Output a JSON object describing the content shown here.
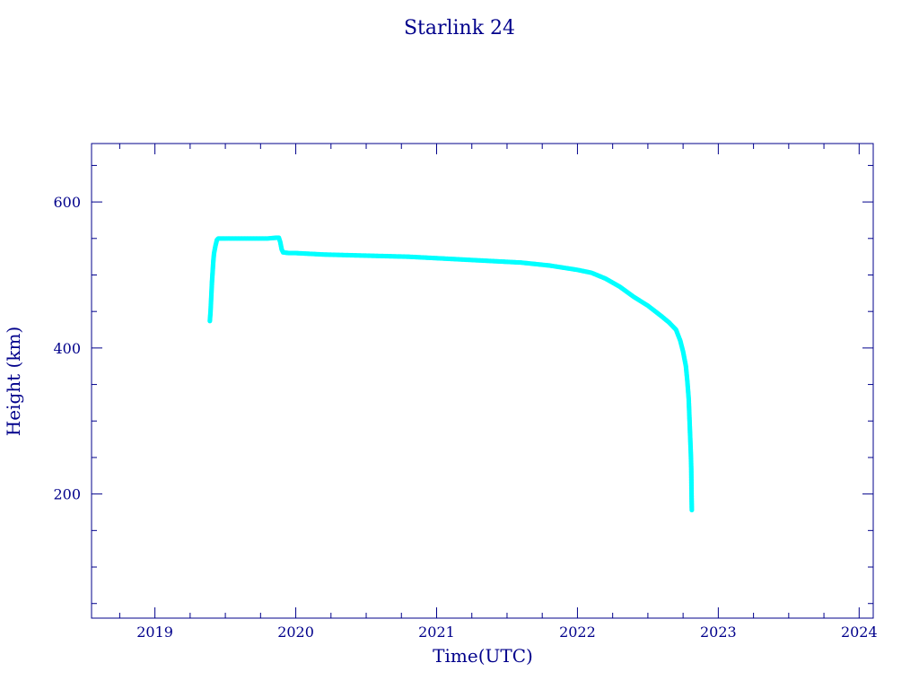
{
  "chart_data": {
    "type": "scatter",
    "title": "Starlink 24",
    "xlabel": "Time(UTC)",
    "ylabel": "Height (km)",
    "xlim": [
      2018.55,
      2024.1
    ],
    "ylim": [
      30,
      680
    ],
    "x_ticks": [
      2019,
      2020,
      2021,
      2022,
      2023,
      2024
    ],
    "y_ticks": [
      200,
      400,
      600
    ],
    "grid": false,
    "colors": {
      "axis": "#00008b",
      "points": "#00ffff",
      "line": "#cc0000"
    },
    "series": [
      {
        "points": [
          [
            2019.39,
            437
          ],
          [
            2019.395,
            450
          ],
          [
            2019.4,
            470
          ],
          [
            2019.405,
            490
          ],
          [
            2019.41,
            505
          ],
          [
            2019.415,
            520
          ],
          [
            2019.42,
            530
          ],
          [
            2019.43,
            540
          ],
          [
            2019.44,
            548
          ],
          [
            2019.45,
            550
          ],
          [
            2019.5,
            550
          ],
          [
            2019.6,
            550
          ],
          [
            2019.7,
            550
          ],
          [
            2019.8,
            550
          ],
          [
            2019.86,
            551
          ],
          [
            2019.88,
            551
          ],
          [
            2019.89,
            545
          ],
          [
            2019.9,
            535
          ],
          [
            2019.91,
            531
          ],
          [
            2019.95,
            530
          ],
          [
            2020.0,
            530
          ],
          [
            2020.2,
            528
          ],
          [
            2020.4,
            527
          ],
          [
            2020.6,
            526
          ],
          [
            2020.8,
            525
          ],
          [
            2021.0,
            523
          ],
          [
            2021.2,
            521
          ],
          [
            2021.4,
            519
          ],
          [
            2021.6,
            517
          ],
          [
            2021.8,
            513
          ],
          [
            2021.9,
            510
          ],
          [
            2022.0,
            507
          ],
          [
            2022.1,
            503
          ],
          [
            2022.2,
            495
          ],
          [
            2022.3,
            484
          ],
          [
            2022.4,
            470
          ],
          [
            2022.5,
            458
          ],
          [
            2022.6,
            443
          ],
          [
            2022.65,
            435
          ],
          [
            2022.7,
            425
          ],
          [
            2022.73,
            410
          ],
          [
            2022.75,
            395
          ],
          [
            2022.77,
            375
          ],
          [
            2022.78,
            355
          ],
          [
            2022.79,
            330
          ],
          [
            2022.795,
            305
          ],
          [
            2022.8,
            280
          ],
          [
            2022.805,
            255
          ],
          [
            2022.808,
            235
          ],
          [
            2022.81,
            200
          ],
          [
            2022.812,
            178
          ]
        ]
      }
    ]
  }
}
